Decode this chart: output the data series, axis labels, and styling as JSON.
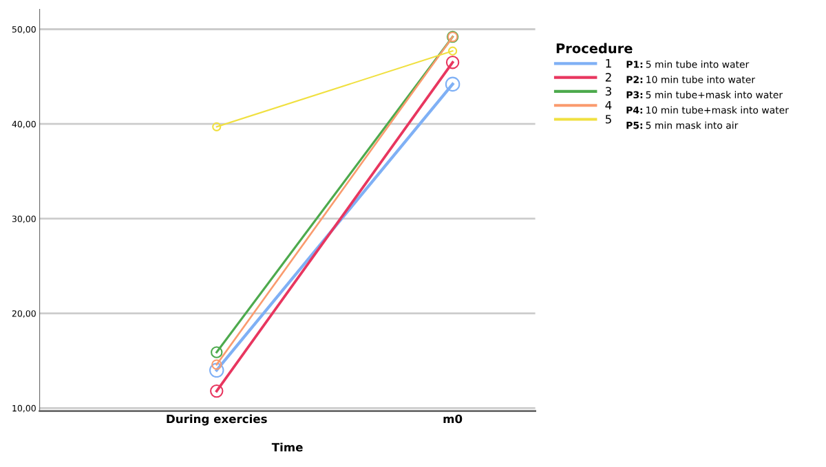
{
  "chart_data": {
    "type": "line",
    "xlabel": "Time",
    "legend_title": "Procedure",
    "categories": [
      "During exercies",
      "m0"
    ],
    "series": [
      {
        "name": "1",
        "color": "#7fb0f5",
        "values": [
          14.0,
          44.2
        ]
      },
      {
        "name": "2",
        "color": "#e8365f",
        "values": [
          11.8,
          46.5
        ]
      },
      {
        "name": "3",
        "color": "#4daa4d",
        "values": [
          15.9,
          49.2
        ]
      },
      {
        "name": "4",
        "color": "#fa9b6e",
        "values": [
          14.6,
          49.2
        ]
      },
      {
        "name": "5",
        "color": "#f0e040",
        "values": [
          39.7,
          47.7
        ]
      }
    ],
    "annotations": [
      "P1: 5 min tube into water",
      "P2: 10 min tube into water",
      "P3: 5 min tube+mask into water",
      "P4: 10 min tube+mask into water",
      "P5: 5 min mask into air"
    ],
    "ylim": [
      9.7,
      52.1
    ],
    "yticks": [
      {
        "value": 10,
        "label": "10,00"
      },
      {
        "value": 20,
        "label": "20,00"
      },
      {
        "value": 30,
        "label": "30,00"
      },
      {
        "value": 40,
        "label": "40,00"
      },
      {
        "value": 50,
        "label": "50,00"
      }
    ],
    "grid": "y",
    "legend": "right",
    "marker": "circle",
    "line_style": "solid"
  }
}
